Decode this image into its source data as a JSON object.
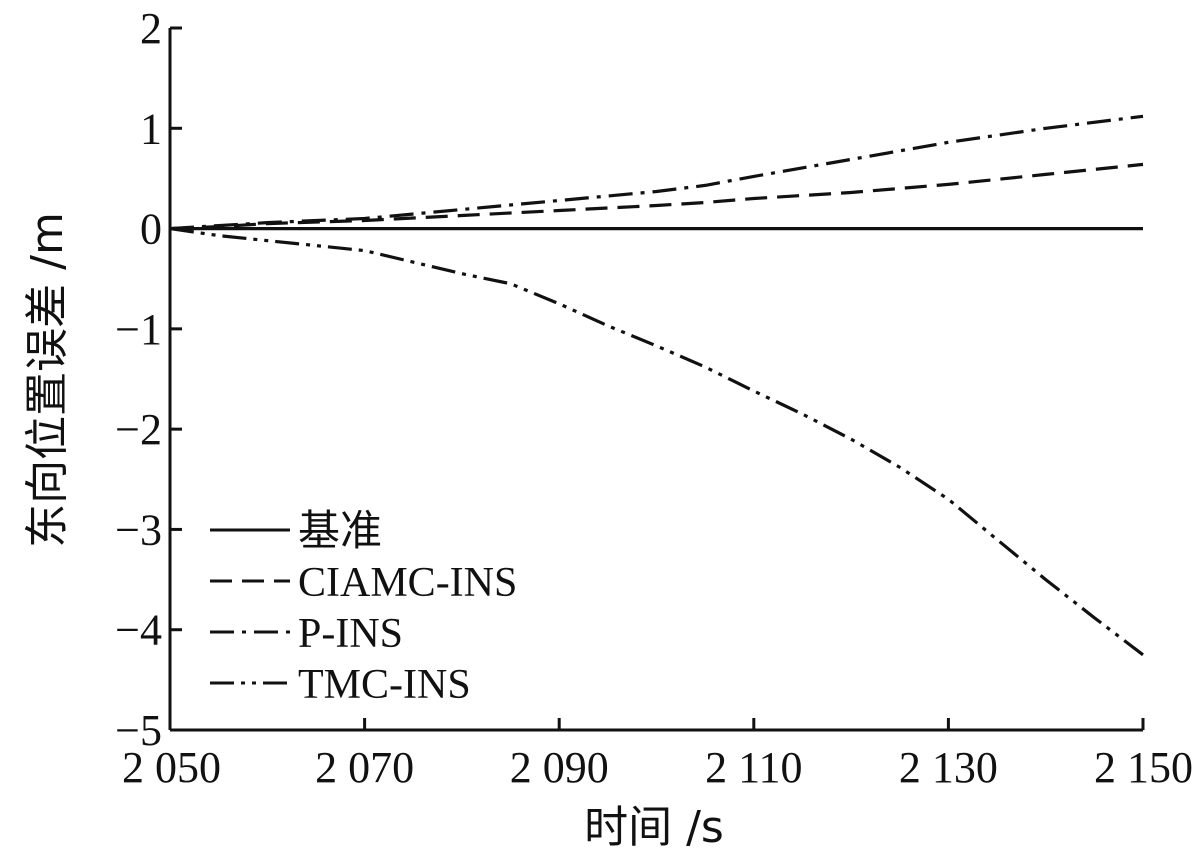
{
  "chart_data": {
    "type": "line",
    "xlabel": "时间 /s",
    "ylabel": "东向位置误差 /m",
    "xlim": [
      2050,
      2150
    ],
    "ylim": [
      -5,
      2
    ],
    "x_ticks": [
      2050,
      2070,
      2090,
      2110,
      2130,
      2150
    ],
    "x_tick_labels": [
      "2 050",
      "2 070",
      "2 090",
      "2 110",
      "2 130",
      "2 150"
    ],
    "y_ticks": [
      2,
      1,
      0,
      -1,
      -2,
      -3,
      -4,
      -5
    ],
    "y_tick_labels": [
      "2",
      "1",
      "0",
      "−1",
      "−2",
      "−3",
      "−4",
      "−5"
    ],
    "grid": false,
    "legend_position": "bottom-left",
    "series": [
      {
        "name": "基准",
        "style": "solid",
        "x": [
          2050,
          2150
        ],
        "y": [
          0,
          0
        ]
      },
      {
        "name": "CIAMC-INS",
        "style": "dashed",
        "x": [
          2050,
          2055,
          2060,
          2070,
          2080,
          2090,
          2100,
          2105,
          2110,
          2120,
          2130,
          2140,
          2150
        ],
        "y": [
          0,
          0.02,
          0.05,
          0.08,
          0.13,
          0.18,
          0.23,
          0.26,
          0.3,
          0.36,
          0.44,
          0.54,
          0.64
        ]
      },
      {
        "name": "P-INS",
        "style": "dashdot",
        "x": [
          2050,
          2055,
          2060,
          2070,
          2080,
          2090,
          2100,
          2105,
          2110,
          2120,
          2130,
          2140,
          2150
        ],
        "y": [
          0,
          0.03,
          0.06,
          0.1,
          0.19,
          0.28,
          0.37,
          0.43,
          0.52,
          0.69,
          0.86,
          1.0,
          1.12
        ]
      },
      {
        "name": "TMC-INS",
        "style": "dashdotdot",
        "x": [
          2050,
          2055,
          2060,
          2070,
          2080,
          2085,
          2090,
          2095,
          2100,
          2105,
          2110,
          2115,
          2120,
          2125,
          2130,
          2135,
          2140,
          2145,
          2150
        ],
        "y": [
          0,
          -0.07,
          -0.12,
          -0.22,
          -0.45,
          -0.55,
          -0.75,
          -0.97,
          -1.17,
          -1.38,
          -1.62,
          -1.85,
          -2.1,
          -2.38,
          -2.7,
          -3.1,
          -3.5,
          -3.88,
          -4.25
        ]
      }
    ]
  }
}
